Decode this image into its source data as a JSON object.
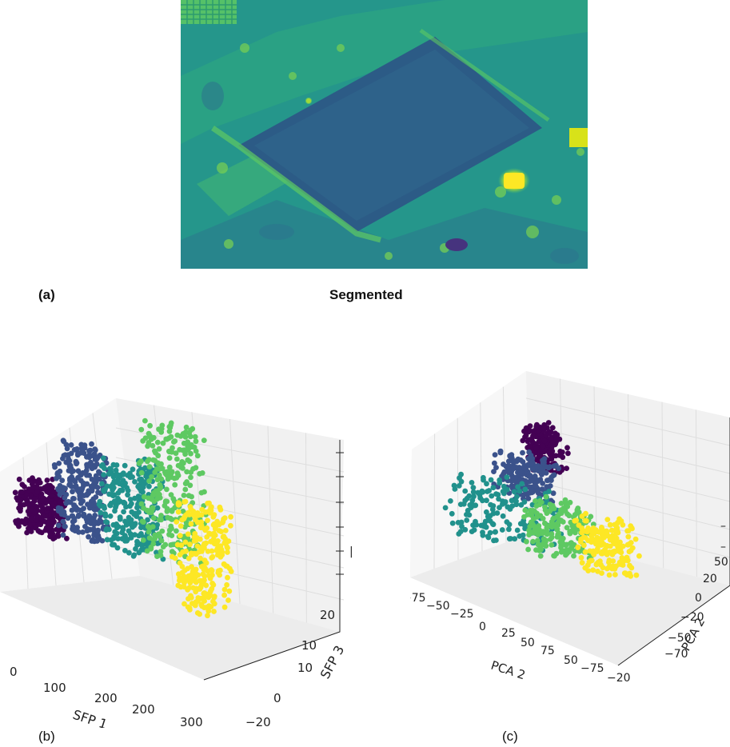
{
  "figure": {
    "panel_labels": {
      "a": "(a)",
      "b": "(b)",
      "c": "(c)"
    },
    "segmented_title": "Segmented"
  },
  "colors": {
    "viridis": [
      "#440154",
      "#3b528b",
      "#21918c",
      "#5ec962",
      "#fde725"
    ],
    "grid": "#e3e3e3",
    "pane": "#f4f4f4"
  },
  "chart_data": [
    {
      "type": "scatter",
      "panel": "(b)",
      "projection": "3d",
      "title": "",
      "xlabel": "SFP 1",
      "ylabel": "SFP 3",
      "zlabel": "",
      "x_ticks": [
        "0",
        "100",
        "200",
        "200",
        "300"
      ],
      "y_ticks": [
        "−20",
        "0",
        "10",
        "10",
        "20"
      ],
      "z_ticks": [
        "",
        "",
        "",
        "|",
        "",
        ""
      ],
      "color_map": "viridis",
      "clusters": [
        {
          "name": "",
          "color": "#440154",
          "x": [
            0,
            60
          ],
          "y": [
            -20,
            20
          ],
          "z": [
            0.1,
            0.5
          ]
        },
        {
          "name": "",
          "color": "#3b528b",
          "x": [
            60,
            120
          ],
          "y": [
            -20,
            20
          ],
          "z": [
            0.1,
            0.8
          ]
        },
        {
          "name": "",
          "color": "#21918c",
          "x": [
            120,
            200
          ],
          "y": [
            -20,
            20
          ],
          "z": [
            0.0,
            0.7
          ]
        },
        {
          "name": "",
          "color": "#5ec962",
          "x": [
            180,
            260
          ],
          "y": [
            -20,
            20
          ],
          "z": [
            0.0,
            1.0
          ]
        },
        {
          "name": "",
          "color": "#fde725",
          "x": [
            230,
            300
          ],
          "y": [
            -20,
            20
          ],
          "z": [
            -0.4,
            0.4
          ]
        }
      ],
      "grid": true
    },
    {
      "type": "scatter",
      "panel": "(c)",
      "projection": "3d",
      "title": "",
      "xlabel": "PCA 2",
      "ylabel": "PCA 2",
      "zlabel": "",
      "x_ticks": [
        "−75",
        "−50",
        "−25",
        "0",
        "25",
        "50",
        "75",
        "50",
        "−75",
        "−20"
      ],
      "y_ticks": [
        "−70",
        "−50",
        "−20",
        "0",
        "20",
        "50"
      ],
      "z_ticks": [
        "–",
        "–"
      ],
      "color_map": "viridis",
      "clusters": [
        {
          "name": "",
          "color": "#440154",
          "x": [
            -10,
            15
          ],
          "y": [
            -20,
            40
          ],
          "z": [
            0.6,
            1.0
          ]
        },
        {
          "name": "",
          "color": "#3b528b",
          "x": [
            -30,
            10
          ],
          "y": [
            -30,
            30
          ],
          "z": [
            0.3,
            0.7
          ]
        },
        {
          "name": "",
          "color": "#21918c",
          "x": [
            -70,
            20
          ],
          "y": [
            -50,
            20
          ],
          "z": [
            -0.2,
            0.4
          ]
        },
        {
          "name": "",
          "color": "#5ec962",
          "x": [
            -10,
            40
          ],
          "y": [
            -20,
            40
          ],
          "z": [
            -0.2,
            0.3
          ]
        },
        {
          "name": "",
          "color": "#fde725",
          "x": [
            30,
            75
          ],
          "y": [
            0,
            50
          ],
          "z": [
            -0.3,
            0.2
          ]
        }
      ],
      "grid": true
    }
  ]
}
